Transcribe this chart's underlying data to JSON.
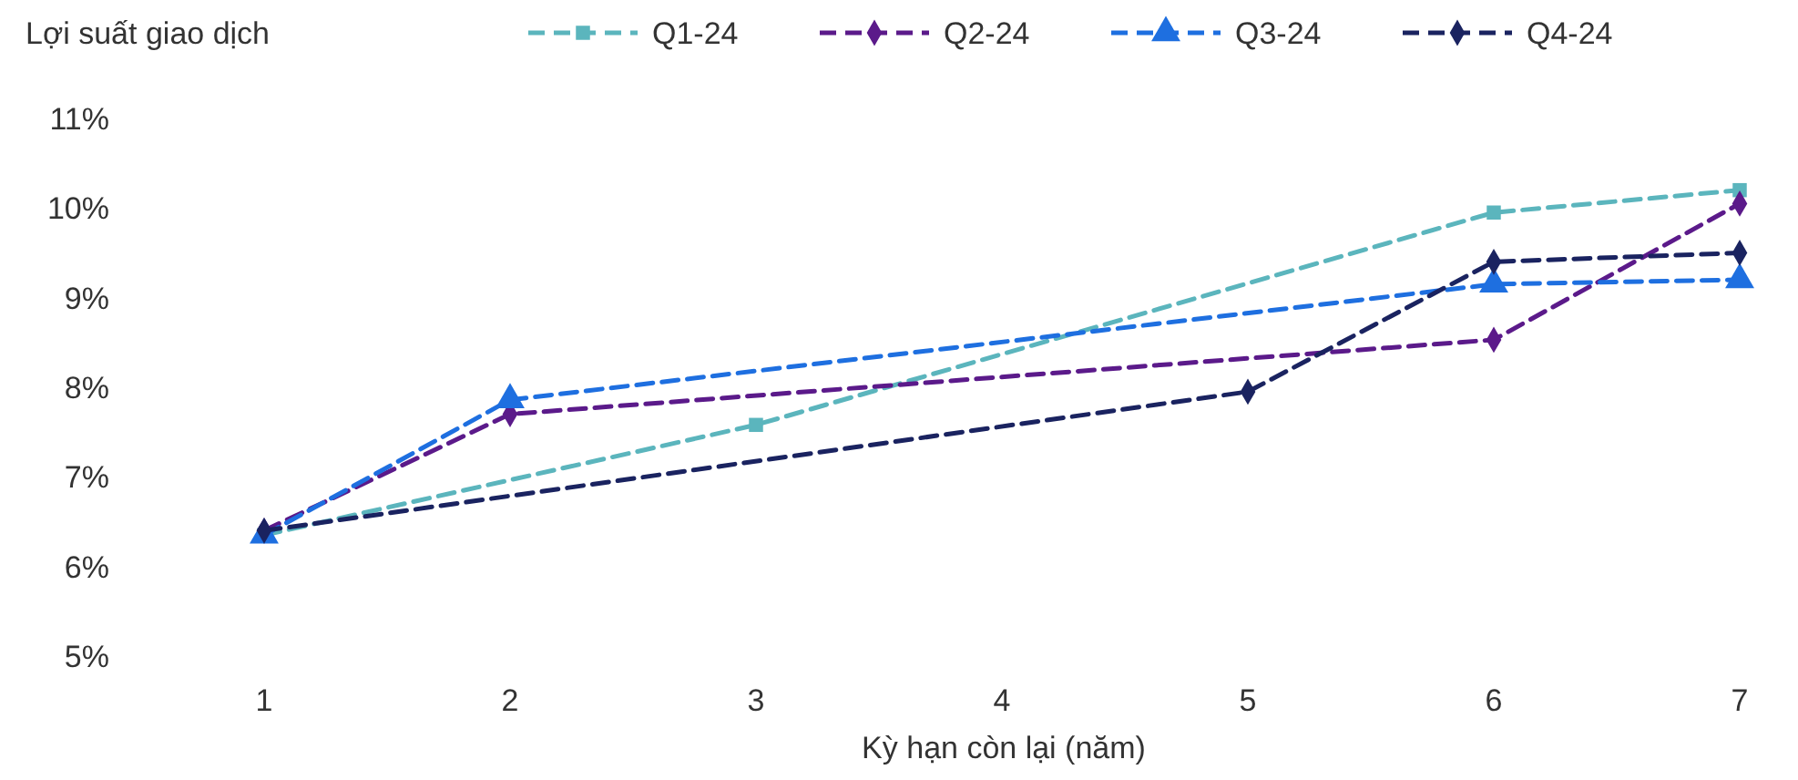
{
  "chart_data": {
    "type": "line",
    "ylabel": "Lợi suất giao dịch",
    "xlabel": "Kỳ hạn còn lại (năm)",
    "categories": [
      "1",
      "2",
      "3",
      "4",
      "5",
      "6",
      "7"
    ],
    "ylim": [
      5,
      11
    ],
    "yticks": [
      {
        "value": 5,
        "label": "5%"
      },
      {
        "value": 6,
        "label": "6%"
      },
      {
        "value": 7,
        "label": "7%"
      },
      {
        "value": 8,
        "label": "8%"
      },
      {
        "value": 9,
        "label": "9%"
      },
      {
        "value": 10,
        "label": "10%"
      },
      {
        "value": 11,
        "label": "11%"
      }
    ],
    "grid": false,
    "legend": "top",
    "line_style": "dashed",
    "series": [
      {
        "name": "Q1-24",
        "color": "#5bb5bd",
        "marker": "square",
        "values": [
          6.35,
          null,
          7.58,
          null,
          null,
          9.95,
          10.2
        ]
      },
      {
        "name": "Q2-24",
        "color": "#5b1a8a",
        "marker": "diamond",
        "values": [
          6.4,
          7.7,
          null,
          null,
          null,
          8.53,
          10.05
        ]
      },
      {
        "name": "Q3-24",
        "color": "#1e6fe0",
        "marker": "triangle",
        "values": [
          6.35,
          7.86,
          null,
          null,
          null,
          9.15,
          9.2
        ]
      },
      {
        "name": "Q4-24",
        "color": "#1a2360",
        "marker": "diamond",
        "values": [
          6.4,
          null,
          null,
          null,
          7.95,
          9.4,
          9.5
        ]
      }
    ]
  }
}
